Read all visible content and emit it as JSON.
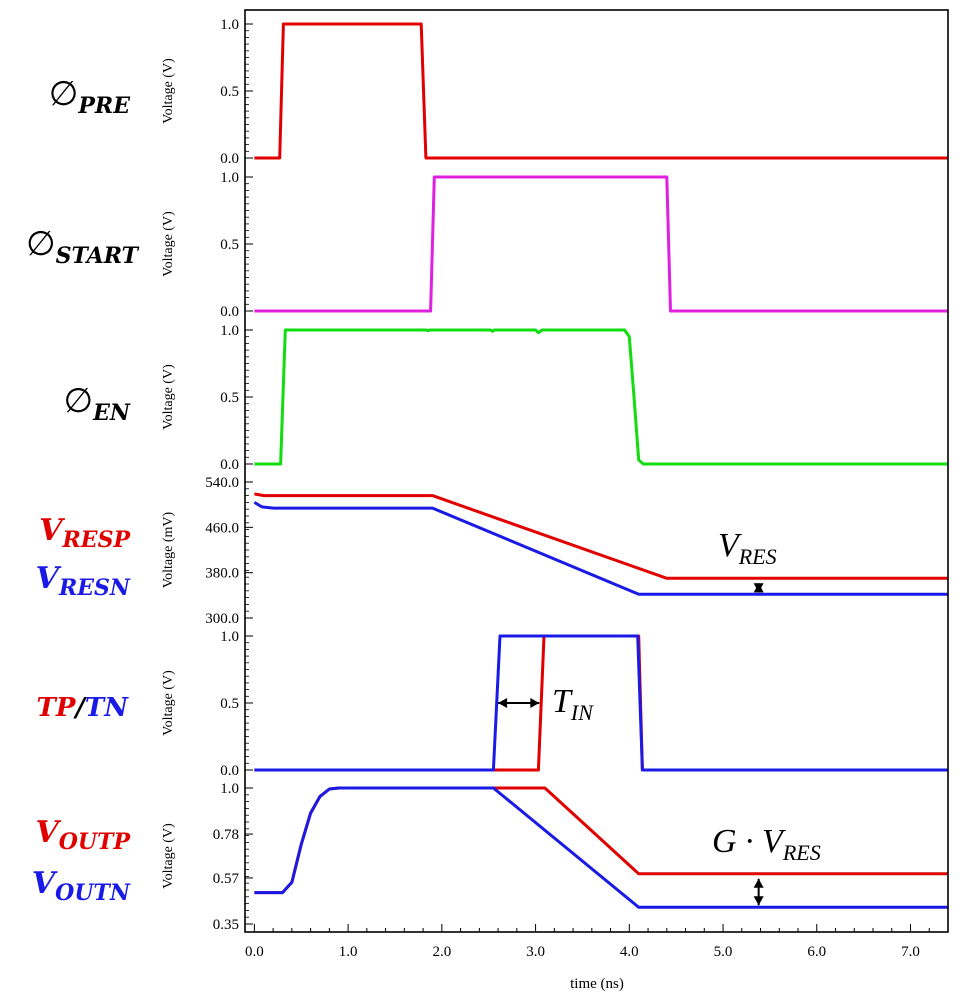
{
  "chart_data": {
    "type": "line",
    "x_axis": {
      "label": "time (ns)",
      "range": [
        -0.1,
        7.4
      ],
      "ticks": [
        "0.0",
        "1.0",
        "2.0",
        "3.0",
        "4.0",
        "5.0",
        "6.0",
        "7.0"
      ]
    },
    "colors": {
      "red": "#e00000",
      "magenta": "#e020e0",
      "green": "#11dd11",
      "blue": "#1a1ae6",
      "axis": "#000000"
    },
    "panels": [
      {
        "id": "pre",
        "name_main": "∅",
        "name_sub": "PRE",
        "name_color": "#000000",
        "ylabel": "Voltage (V)",
        "ylim": [
          0.0,
          1.0
        ],
        "yticks": [
          "0.0",
          "0.5",
          "1.0"
        ],
        "series": [
          {
            "color": "#e00000",
            "points": [
              [
                0.0,
                0.0
              ],
              [
                0.27,
                0.0
              ],
              [
                0.31,
                1.0
              ],
              [
                1.78,
                1.0
              ],
              [
                1.83,
                0.0
              ],
              [
                7.4,
                0.0
              ]
            ]
          }
        ]
      },
      {
        "id": "start",
        "name_main": "∅",
        "name_sub": "START",
        "name_color": "#000000",
        "ylabel": "Voltage (V)",
        "ylim": [
          0.0,
          1.0
        ],
        "yticks": [
          "0.0",
          "0.5",
          "1.0"
        ],
        "series": [
          {
            "color": "#e020e0",
            "points": [
              [
                0.0,
                0.0
              ],
              [
                1.88,
                0.0
              ],
              [
                1.92,
                1.0
              ],
              [
                4.4,
                1.0
              ],
              [
                4.44,
                0.0
              ],
              [
                7.4,
                0.0
              ]
            ]
          }
        ]
      },
      {
        "id": "en",
        "name_main": "∅",
        "name_sub": "EN",
        "name_color": "#000000",
        "ylabel": "Voltage (V)",
        "ylim": [
          0.0,
          1.0
        ],
        "yticks": [
          "0.0",
          "0.5",
          "1.0"
        ],
        "series": [
          {
            "color": "#11dd11",
            "points": [
              [
                0.0,
                0.0
              ],
              [
                0.28,
                0.0
              ],
              [
                0.33,
                1.0
              ],
              [
                1.83,
                1.0
              ],
              [
                1.85,
                0.995
              ],
              [
                1.87,
                1.0
              ],
              [
                2.52,
                1.0
              ],
              [
                2.54,
                0.99
              ],
              [
                2.56,
                1.0
              ],
              [
                3.0,
                1.0
              ],
              [
                3.03,
                0.98
              ],
              [
                3.07,
                1.0
              ],
              [
                3.95,
                1.0
              ],
              [
                4.0,
                0.95
              ],
              [
                4.05,
                0.5
              ],
              [
                4.1,
                0.03
              ],
              [
                4.15,
                0.0
              ],
              [
                7.4,
                0.0
              ]
            ]
          }
        ]
      },
      {
        "id": "res",
        "name_lines": [
          {
            "main": "V",
            "sub": "RESP",
            "color": "#e00000"
          },
          {
            "main": "V",
            "sub": "RESN",
            "color": "#1a1ae6"
          }
        ],
        "ylabel": "Voltage (mV)",
        "ylim": [
          300.0,
          540.0
        ],
        "yticks": [
          "300.0",
          "380.0",
          "460.0",
          "540.0"
        ],
        "series": [
          {
            "color": "#e00000",
            "points": [
              [
                0.0,
                519
              ],
              [
                0.1,
                516
              ],
              [
                1.9,
                516
              ],
              [
                4.4,
                370
              ],
              [
                7.4,
                370
              ]
            ]
          },
          {
            "color": "#1a1ae6",
            "points": [
              [
                0.0,
                504
              ],
              [
                0.08,
                496
              ],
              [
                0.2,
                494
              ],
              [
                1.9,
                494
              ],
              [
                4.1,
                342
              ],
              [
                7.4,
                342
              ]
            ]
          }
        ],
        "annotation": {
          "main": "V",
          "sub": "RES",
          "arrow_x": 5.38,
          "arrow_y": [
            370,
            342
          ]
        }
      },
      {
        "id": "tptn",
        "name_parts": [
          {
            "text": "TP",
            "color": "#e00000"
          },
          {
            "text": "/",
            "color": "#000000"
          },
          {
            "text": "TN",
            "color": "#1a1ae6"
          }
        ],
        "ylabel": "Voltage (V)",
        "ylim": [
          0.0,
          1.0
        ],
        "yticks": [
          "0.0",
          "0.5",
          "1.0"
        ],
        "series": [
          {
            "color": "#e00000",
            "points": [
              [
                0.0,
                0.0
              ],
              [
                3.03,
                0.0
              ],
              [
                3.09,
                1.0
              ],
              [
                4.1,
                1.0
              ],
              [
                4.14,
                0.0
              ],
              [
                7.4,
                0.0
              ]
            ]
          },
          {
            "color": "#1a1ae6",
            "points": [
              [
                0.0,
                0.0
              ],
              [
                2.55,
                0.0
              ],
              [
                2.62,
                1.0
              ],
              [
                4.09,
                1.0
              ],
              [
                4.14,
                0.0
              ],
              [
                7.4,
                0.0
              ]
            ]
          }
        ],
        "annotation": {
          "main": "T",
          "sub": "IN",
          "arrow_x": [
            2.6,
            3.04
          ],
          "arrow_y": 0.5
        }
      },
      {
        "id": "out",
        "name_lines": [
          {
            "main": "V",
            "sub": "OUTP",
            "color": "#e00000"
          },
          {
            "main": "V",
            "sub": "OUTN",
            "color": "#1a1ae6"
          }
        ],
        "ylabel": "Voltage (V)",
        "ylim": [
          0.35,
          1.0
        ],
        "yticks": [
          "0.35",
          "0.57",
          "0.78",
          "1.0"
        ],
        "series": [
          {
            "color": "#e00000",
            "points": [
              [
                0.0,
                0.5
              ],
              [
                0.3,
                0.5
              ],
              [
                0.4,
                0.55
              ],
              [
                0.5,
                0.73
              ],
              [
                0.6,
                0.88
              ],
              [
                0.7,
                0.96
              ],
              [
                0.8,
                0.995
              ],
              [
                0.9,
                1.0
              ],
              [
                3.1,
                1.0
              ],
              [
                4.1,
                0.59
              ],
              [
                7.4,
                0.59
              ]
            ]
          },
          {
            "color": "#1a1ae6",
            "points": [
              [
                0.0,
                0.5
              ],
              [
                0.3,
                0.5
              ],
              [
                0.4,
                0.55
              ],
              [
                0.5,
                0.73
              ],
              [
                0.6,
                0.88
              ],
              [
                0.7,
                0.96
              ],
              [
                0.8,
                0.995
              ],
              [
                0.9,
                1.0
              ],
              [
                2.55,
                1.0
              ],
              [
                4.1,
                0.43
              ],
              [
                7.4,
                0.43
              ]
            ]
          }
        ],
        "annotation": {
          "main": "G · V",
          "sub": "RES",
          "arrow_x": 5.38,
          "arrow_y": [
            0.59,
            0.43
          ]
        }
      }
    ]
  }
}
